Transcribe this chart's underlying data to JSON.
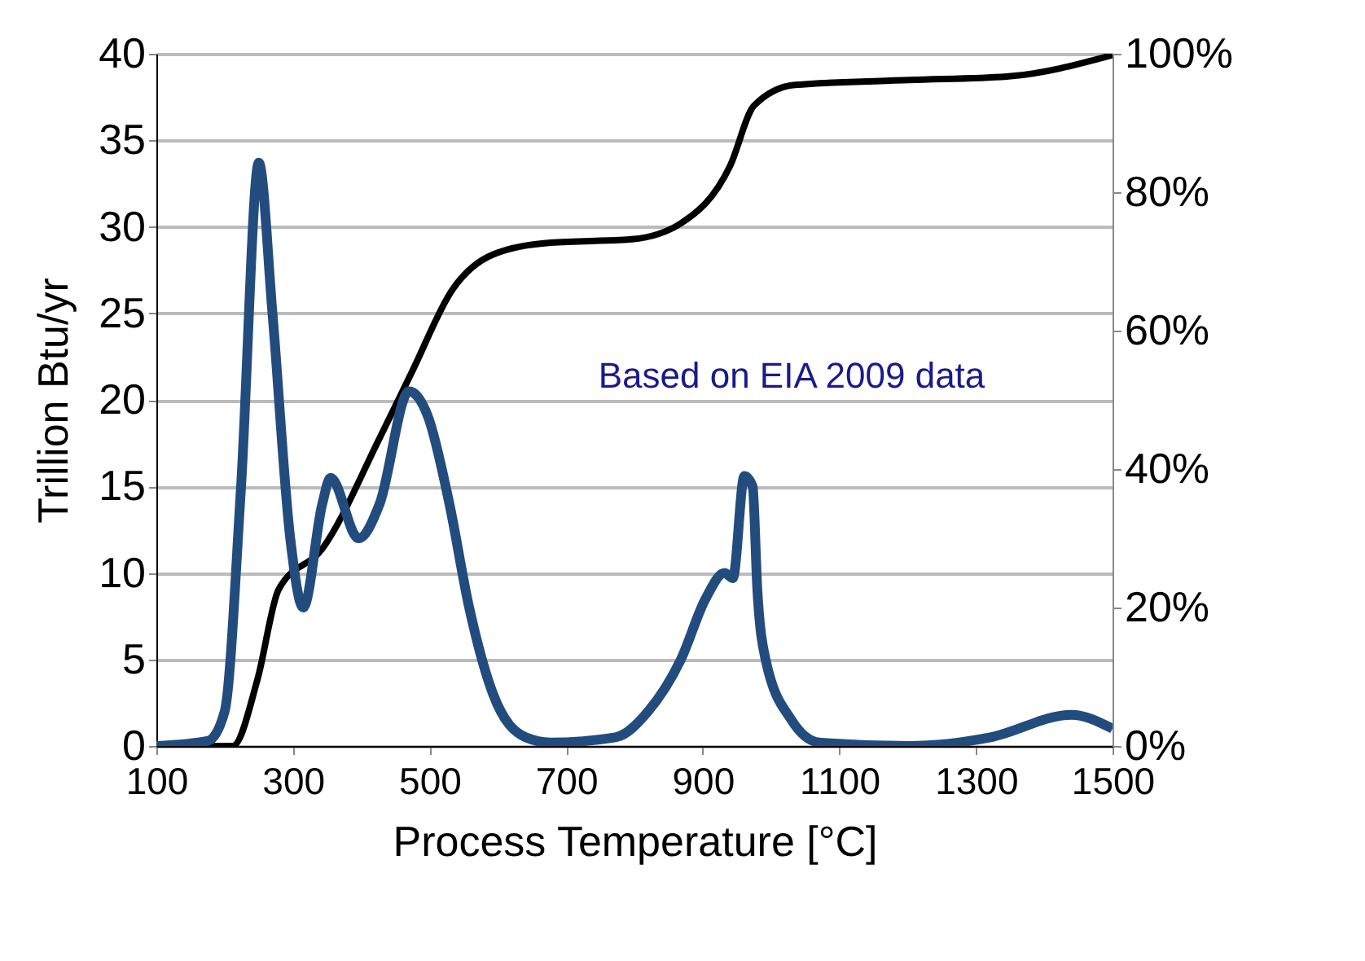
{
  "chart_data": {
    "type": "line",
    "xlabel": "Process Temperature [°C]",
    "ylabel": "Trillion  Btu/yr",
    "xlim": [
      100,
      1500
    ],
    "xticks": [
      100,
      300,
      500,
      700,
      900,
      1100,
      1300,
      1500
    ],
    "ylim": [
      0,
      40
    ],
    "yticks": [
      0,
      5,
      10,
      15,
      20,
      25,
      30,
      35,
      40
    ],
    "y2lim": [
      0,
      100
    ],
    "y2ticks": [
      {
        "value": 0,
        "label": "0%"
      },
      {
        "value": 20,
        "label": "20%"
      },
      {
        "value": 40,
        "label": "40%"
      },
      {
        "value": 60,
        "label": "60%"
      },
      {
        "value": 80,
        "label": "80%"
      },
      {
        "value": 100,
        "label": "100%"
      }
    ],
    "grid": "y",
    "line_style": "solid",
    "marker": "none",
    "annotations": [
      "Based on EIA 2009 data"
    ],
    "series": [
      {
        "color": "#234c7e",
        "x": [
          100,
          176,
          200,
          224,
          250,
          270,
          296,
          315,
          343,
          355,
          396,
          427,
          470,
          498,
          529,
          558,
          593,
          641,
          677,
          772,
          820,
          868,
          904,
          932,
          944,
          961,
          973,
          980,
          992,
          1030,
          1071,
          1202,
          1321,
          1440,
          1500
        ],
        "values": [
          0,
          0.3,
          2,
          15,
          33.7,
          25,
          12,
          8,
          14,
          15.5,
          12,
          14,
          20.5,
          19,
          14,
          8,
          3,
          0.5,
          0.2,
          0.5,
          2,
          5,
          8.5,
          10,
          9.7,
          15.6,
          15,
          9,
          5,
          1.5,
          0.2,
          0,
          0.5,
          1.8,
          1
        ]
      },
      {
        "color": "#000000",
        "axis": "y2",
        "x": [
          100,
          200,
          212,
          248,
          279,
          343,
          427,
          474,
          534,
          593,
          677,
          796,
          868,
          940,
          975,
          1035,
          1202,
          1345,
          1500
        ],
        "values": [
          0,
          0,
          0,
          9.6,
          22.6,
          28.5,
          44.5,
          54,
          66,
          71,
          72.7,
          73.2,
          75.5,
          83.8,
          92.5,
          95.5,
          96.2,
          96.7,
          99.8
        ]
      }
    ]
  }
}
